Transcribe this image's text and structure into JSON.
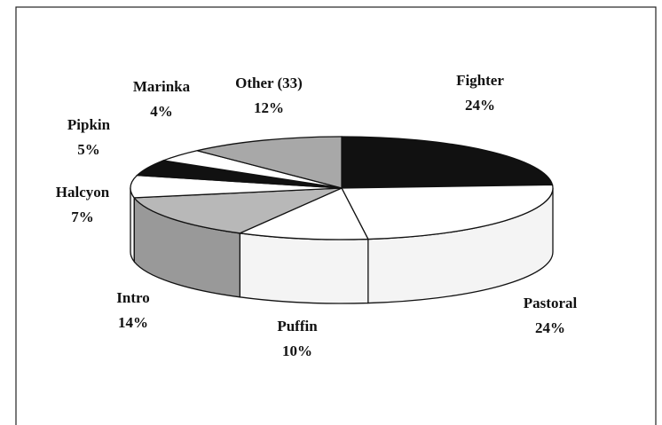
{
  "chart_data": {
    "type": "pie",
    "categories": [
      "Fighter",
      "Pastoral",
      "Puffin",
      "Intro",
      "Halcyon",
      "Pipkin",
      "Marinka",
      "Other (33)"
    ],
    "values": [
      24,
      24,
      10,
      14,
      7,
      5,
      4,
      12
    ],
    "value_labels": [
      "24%",
      "24%",
      "10%",
      "14%",
      "7%",
      "5%",
      "4%",
      "12%"
    ],
    "colors": [
      "#111111",
      "#ffffff",
      "#ffffff",
      "#b8b8b8",
      "#ffffff",
      "#111111",
      "#ffffff",
      "#a8a8a8"
    ]
  }
}
